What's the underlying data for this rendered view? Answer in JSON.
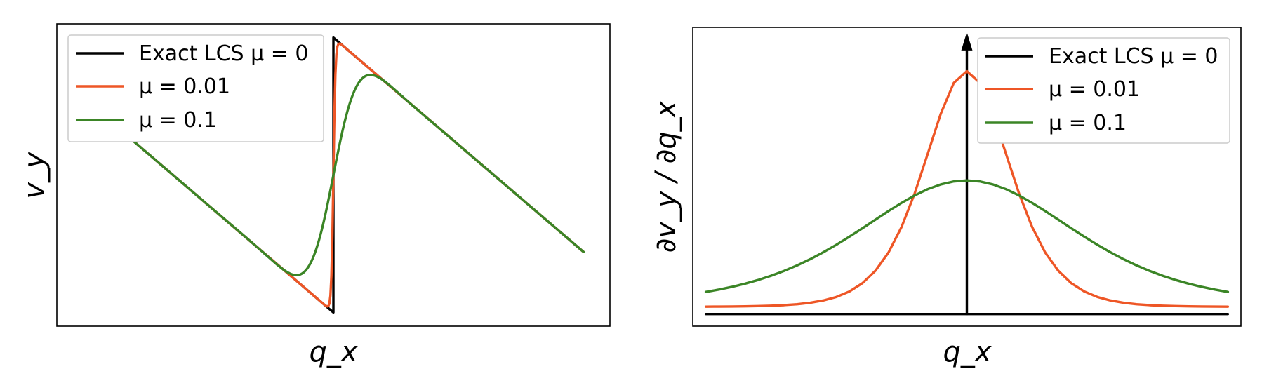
{
  "colors": {
    "exact": "#000000",
    "mu001": "#ee5626",
    "mu01": "#3b8526",
    "legend_border": "#cccccc"
  },
  "chart_data": [
    {
      "type": "line",
      "xlabel": "q_x",
      "ylabel": "v_y",
      "xlim": [
        -1.05,
        1.05
      ],
      "ylim": [
        -1.1,
        1.1
      ],
      "grid": false,
      "ticks": "none",
      "legend_position": "top-left",
      "series": [
        {
          "name": "Exact LCS μ = 0",
          "key": "exact",
          "x": [
            -0.95,
            0.0,
            0.0,
            0.95
          ],
          "y": [
            0.56,
            -1.0,
            1.0,
            -0.56
          ]
        },
        {
          "name": "μ = 0.01",
          "key": "mu001",
          "mu": 0.01
        },
        {
          "name": "μ = 0.1",
          "key": "mu01",
          "mu": 0.1
        }
      ]
    },
    {
      "type": "line",
      "xlabel": "q_x",
      "ylabel": "∂v_y / ∂q_x",
      "xlim": [
        -1.05,
        1.05
      ],
      "ylim": [
        -0.05,
        1.18
      ],
      "grid": false,
      "ticks": "none",
      "legend_position": "top-right",
      "series": [
        {
          "name": "Exact LCS μ = 0",
          "key": "exact",
          "note": "delta spike at q_x = 0"
        },
        {
          "name": "μ = 0.01",
          "key": "mu001",
          "peak": 1.0,
          "baseline": 0.03
        },
        {
          "name": "μ = 0.1",
          "key": "mu01",
          "peak": 0.55,
          "baseline": 0.1
        }
      ]
    }
  ]
}
